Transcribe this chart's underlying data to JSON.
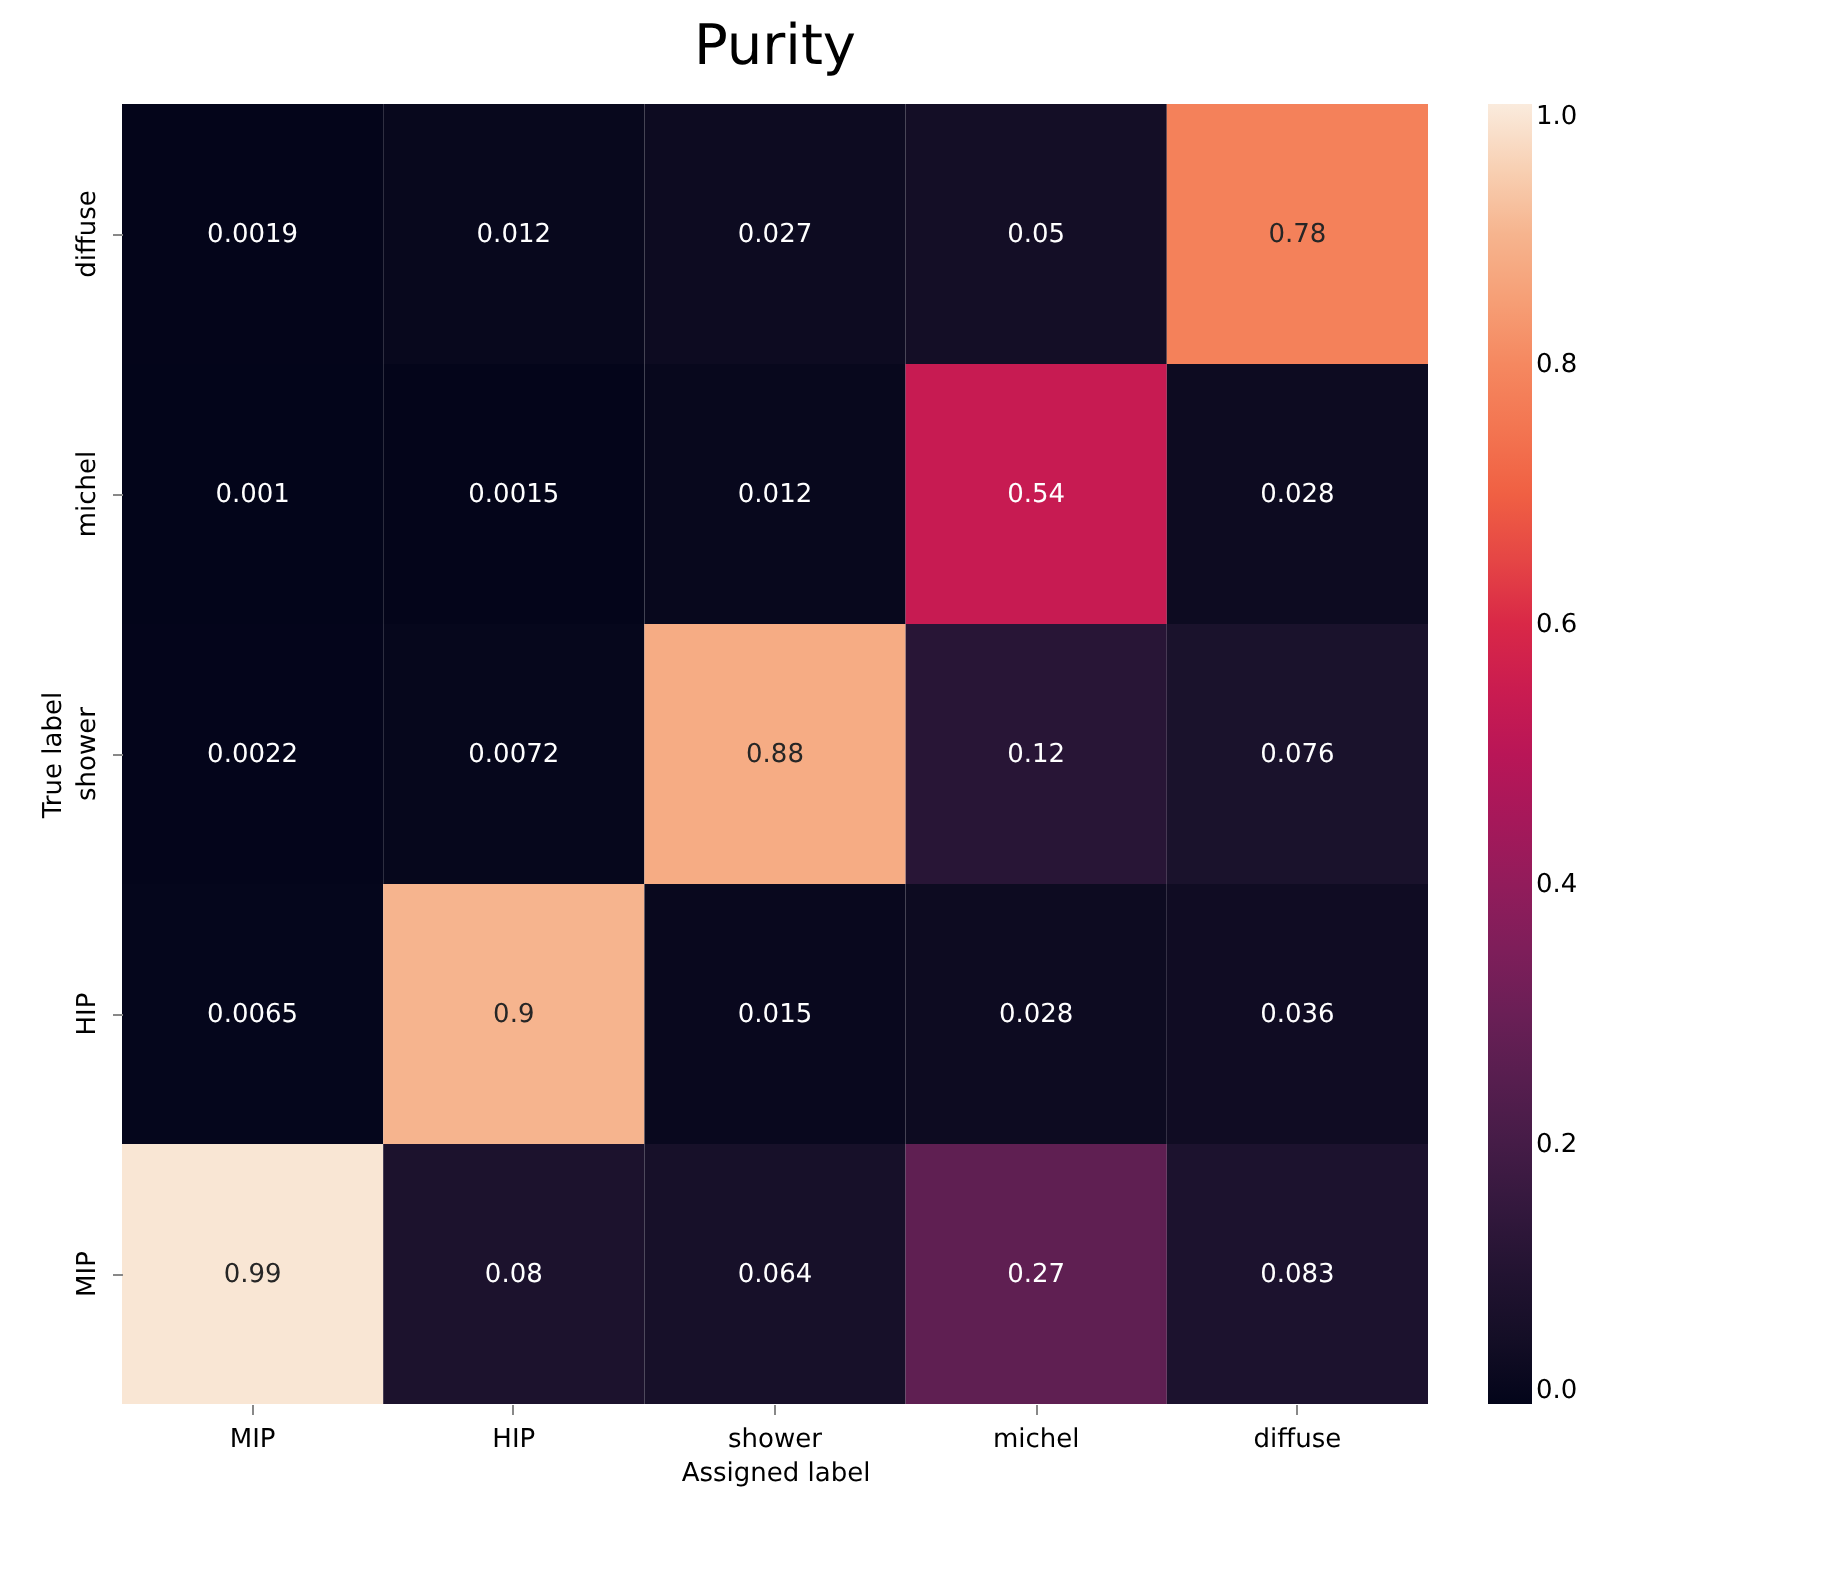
{
  "chart_data": {
    "type": "heatmap",
    "title": "Purity",
    "xlabel": "Assigned label",
    "ylabel": "True label",
    "categories": [
      "MIP",
      "HIP",
      "shower",
      "michel",
      "diffuse"
    ],
    "y_categories": [
      "diffuse",
      "michel",
      "shower",
      "HIP",
      "MIP"
    ],
    "cells": [
      [
        0.0019,
        0.012,
        0.027,
        0.05,
        0.78
      ],
      [
        0.001,
        0.0015,
        0.012,
        0.54,
        0.028
      ],
      [
        0.0022,
        0.0072,
        0.88,
        0.12,
        0.076
      ],
      [
        0.0065,
        0.9,
        0.015,
        0.028,
        0.036
      ],
      [
        0.99,
        0.08,
        0.064,
        0.27,
        0.083
      ]
    ],
    "clim": [
      0,
      1
    ],
    "cticks": [
      {
        "value": 0,
        "label": "0.0"
      },
      0.2,
      0.4,
      0.6,
      0.8,
      {
        "value": 1,
        "label": "1.0"
      }
    ],
    "data_labels": true
  }
}
